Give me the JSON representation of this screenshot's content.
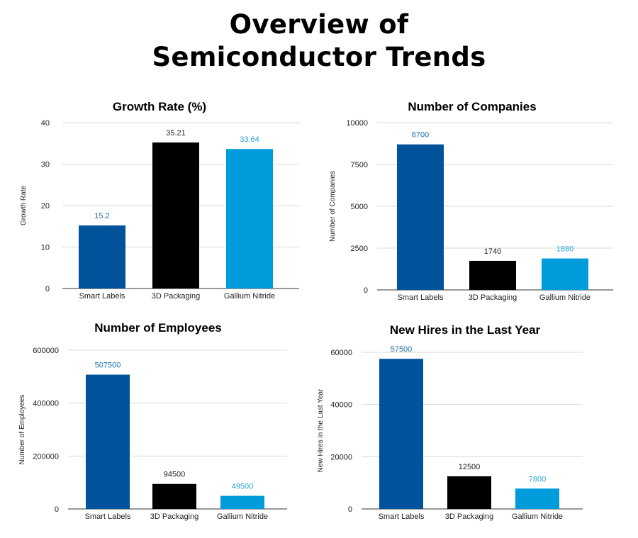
{
  "page_title_line1": "Overview of",
  "page_title_line2": "Semiconductor Trends",
  "colors": {
    "smart_labels": "#00539b",
    "packaging_3d": "#000000",
    "gallium_nitride": "#009bdb",
    "grid": "#d9d9d9",
    "label_blue": "#1f6fb5",
    "label_black": "#222222",
    "label_light": "#2aa3d8"
  },
  "chart_data": [
    {
      "type": "bar",
      "title": "Growth Rate (%)",
      "ylabel": "Growth Rate",
      "xlabel": "",
      "categories": [
        "Smart Labels",
        "3D Packaging",
        "Gallium Nitride"
      ],
      "values": [
        15.2,
        35.21,
        33.64
      ],
      "data_labels": [
        "15.2",
        "35.21",
        "33.64"
      ],
      "yticks": [
        0,
        10,
        20,
        30,
        40
      ],
      "ylim": [
        0,
        40
      ],
      "grid": true
    },
    {
      "type": "bar",
      "title": "Number of Companies",
      "ylabel": "Number of Companies",
      "xlabel": "",
      "categories": [
        "Smart Labels",
        "3D Packaging",
        "Gallium Nitride"
      ],
      "values": [
        8700,
        1740,
        1880
      ],
      "data_labels": [
        "8700",
        "1740",
        "1880"
      ],
      "yticks": [
        0,
        2500,
        5000,
        7500,
        10000
      ],
      "ylim": [
        0,
        10000
      ],
      "grid": true
    },
    {
      "type": "bar",
      "title": "Number of Employees",
      "ylabel": "Number of Employees",
      "xlabel": "",
      "categories": [
        "Smart Labels",
        "3D Packaging",
        "Gallium Nitride"
      ],
      "values": [
        507500,
        94500,
        49500
      ],
      "data_labels": [
        "507500",
        "94500",
        "49500"
      ],
      "yticks": [
        0,
        200000,
        400000,
        600000
      ],
      "ylim": [
        0,
        600000
      ],
      "grid": true
    },
    {
      "type": "bar",
      "title": "New Hires in the Last Year",
      "ylabel": "New Hires in the Last Year",
      "xlabel": "",
      "categories": [
        "Smart Labels",
        "3D Packaging",
        "Gallium Nitride"
      ],
      "values": [
        57500,
        12500,
        7800
      ],
      "data_labels": [
        "57500",
        "12500",
        "7800"
      ],
      "yticks": [
        0,
        20000,
        40000,
        60000
      ],
      "ylim": [
        0,
        60000
      ],
      "grid": true
    }
  ]
}
